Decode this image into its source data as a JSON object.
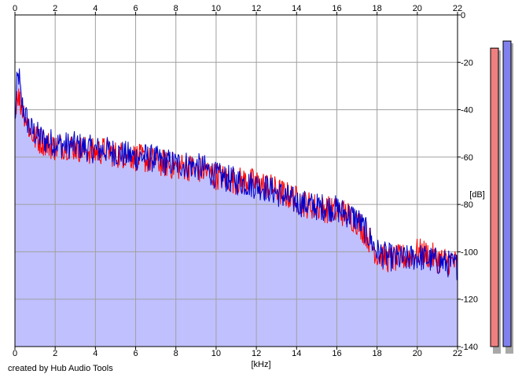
{
  "credit": "created by Hub Audio Tools",
  "chart_data": {
    "type": "area",
    "xlabel": "[kHz]",
    "ylabel": "[dB]",
    "x_ticks": [
      0,
      2,
      4,
      6,
      8,
      10,
      12,
      14,
      16,
      18,
      20,
      22
    ],
    "y_ticks": [
      0,
      -20,
      -40,
      -60,
      -80,
      -100,
      -120,
      -140
    ],
    "xlim": [
      0,
      22
    ],
    "ylim": [
      -140,
      0
    ],
    "grid": true,
    "colors": {
      "left": "#ff0000",
      "right": "#0000cc",
      "fill": "#c0c0ff",
      "meter_left": "#f08080",
      "meter_right": "#8080ee"
    },
    "series": [
      {
        "x": [
          0,
          0.1,
          0.2,
          0.3,
          0.5,
          0.75,
          1,
          1.5,
          2,
          2.5,
          3,
          3.5,
          4,
          4.5,
          5,
          5.5,
          6,
          6.5,
          7,
          7.5,
          8,
          8.5,
          9,
          9.5,
          10,
          10.5,
          11,
          11.5,
          12,
          12.5,
          13,
          13.5,
          14,
          14.5,
          15,
          15.5,
          16,
          16.5,
          17,
          17.5,
          18,
          18.5,
          19,
          19.5,
          20,
          20.5,
          21,
          21.5,
          22
        ],
        "values": [
          -44,
          -32,
          -35,
          -38,
          -42,
          -49,
          -52,
          -54,
          -56,
          -55,
          -56,
          -57,
          -58,
          -57,
          -59,
          -59,
          -60,
          -61,
          -62,
          -63,
          -64,
          -64,
          -65,
          -66,
          -68,
          -69,
          -70,
          -70,
          -71,
          -72,
          -74,
          -76,
          -78,
          -80,
          -81,
          -82,
          -83,
          -84,
          -87,
          -93,
          -101,
          -103,
          -103,
          -102,
          -100,
          -101,
          -103,
          -104,
          -105
        ]
      },
      {
        "x": [
          0,
          0.1,
          0.2,
          0.3,
          0.5,
          0.75,
          1,
          1.5,
          2,
          2.5,
          3,
          3.5,
          4,
          4.5,
          5,
          5.5,
          6,
          6.5,
          7,
          7.5,
          8,
          8.5,
          9,
          9.5,
          10,
          10.5,
          11,
          11.5,
          12,
          12.5,
          13,
          13.5,
          14,
          14.5,
          15,
          15.5,
          16,
          16.5,
          17,
          17.5,
          18,
          18.5,
          19,
          19.5,
          20,
          20.5,
          21,
          21.5,
          22
        ],
        "values": [
          -46,
          -29,
          -25,
          -36,
          -42,
          -48,
          -50,
          -53,
          -54,
          -55,
          -55,
          -56,
          -57,
          -57,
          -58,
          -59,
          -60,
          -60,
          -61,
          -62,
          -63,
          -63,
          -64,
          -65,
          -68,
          -69,
          -70,
          -71,
          -72,
          -73,
          -75,
          -77,
          -79,
          -80,
          -81,
          -81,
          -82,
          -84,
          -86,
          -92,
          -100,
          -102,
          -103,
          -103,
          -102,
          -103,
          -104,
          -105,
          -106
        ]
      }
    ],
    "meters": [
      {
        "top_db": -14,
        "bottom_db": -140
      },
      {
        "top_db": -11,
        "bottom_db": -140
      }
    ]
  }
}
